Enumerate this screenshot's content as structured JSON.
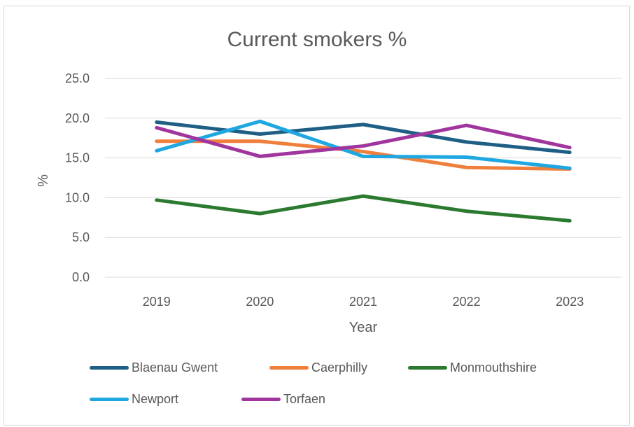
{
  "chart_data": {
    "type": "line",
    "title": "Current smokers %",
    "xlabel": "Year",
    "ylabel": "%",
    "categories": [
      "2019",
      "2020",
      "2021",
      "2022",
      "2023"
    ],
    "y_ticks": [
      "0.0",
      "5.0",
      "10.0",
      "15.0",
      "20.0",
      "25.0"
    ],
    "ylim": [
      0,
      25
    ],
    "grid": true,
    "legend_position": "bottom",
    "series": [
      {
        "name": "Blaenau Gwent",
        "color": "#1f5f86",
        "values": [
          19.5,
          18.0,
          19.2,
          17.0,
          15.7
        ]
      },
      {
        "name": "Caerphilly",
        "color": "#f07f3c",
        "values": [
          17.1,
          17.1,
          15.8,
          13.8,
          13.6
        ]
      },
      {
        "name": "Monmouthshire",
        "color": "#2b7a2f",
        "values": [
          9.7,
          8.0,
          10.2,
          8.3,
          7.1
        ]
      },
      {
        "name": "Newport",
        "color": "#1ea7e0",
        "values": [
          15.9,
          19.6,
          15.2,
          15.1,
          13.7
        ]
      },
      {
        "name": "Torfaen",
        "color": "#a0359e",
        "values": [
          18.8,
          15.2,
          16.5,
          19.1,
          16.3
        ]
      }
    ]
  }
}
